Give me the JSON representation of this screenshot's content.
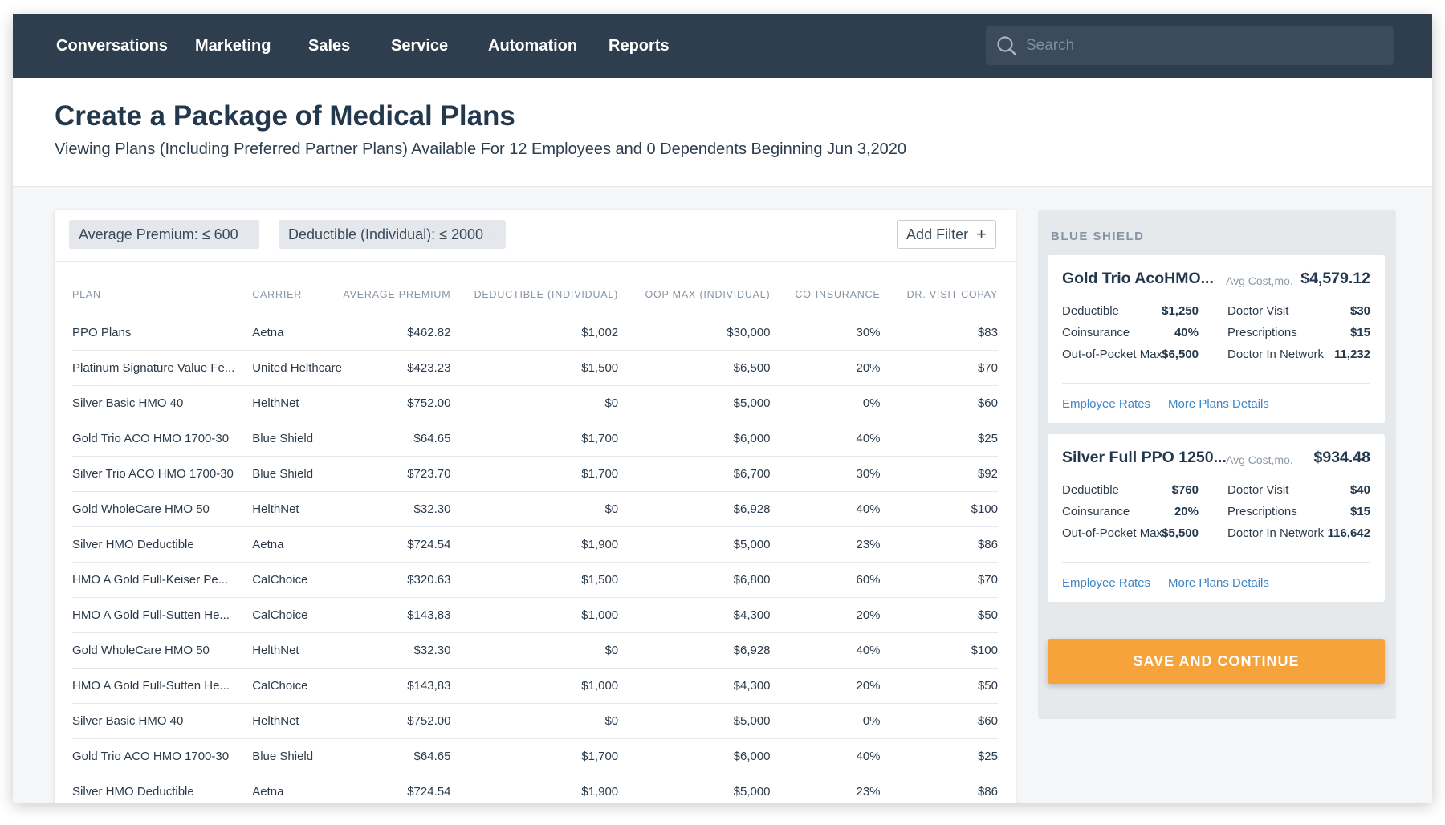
{
  "nav": {
    "items": [
      {
        "label": "Conversations"
      },
      {
        "label": "Marketing"
      },
      {
        "label": "Sales"
      },
      {
        "label": "Service"
      },
      {
        "label": "Automation"
      },
      {
        "label": "Reports"
      }
    ],
    "search": {
      "placeholder": "Search",
      "value": ""
    }
  },
  "header": {
    "title": "Create a Package of Medical Plans",
    "subtitle": "Viewing Plans (Including Preferred Partner Plans) Available For 12 Employees and 0 Dependents Beginning Jun 3,2020"
  },
  "filters": {
    "chips": [
      {
        "label": "Average Premium: ≤ 600"
      },
      {
        "label": "Deductible (Individual): ≤ 2000"
      }
    ],
    "add_label": "Add Filter"
  },
  "table": {
    "columns": [
      "PLAN",
      "CARRIER",
      "AVERAGE PREMIUM",
      "DEDUCTIBLE (INDIVIDUAL)",
      "OOP MAX (INDIVIDUAL)",
      "CO-INSURANCE",
      "DR. VISIT COPAY"
    ],
    "rows": [
      [
        "PPO Plans",
        "Aetna",
        "$462.82",
        "$1,002",
        "$30,000",
        "30%",
        "$83"
      ],
      [
        "Platinum Signature Value Fe...",
        "United Helthcare",
        "$423.23",
        "$1,500",
        "$6,500",
        "20%",
        "$70"
      ],
      [
        "Silver Basic HMO 40",
        "HelthNet",
        "$752.00",
        "$0",
        "$5,000",
        "0%",
        "$60"
      ],
      [
        "Gold Trio ACO HMO 1700-30",
        "Blue Shield",
        "$64.65",
        "$1,700",
        "$6,000",
        "40%",
        "$25"
      ],
      [
        "Silver Trio ACO HMO 1700-30",
        "Blue Shield",
        "$723.70",
        "$1,700",
        "$6,700",
        "30%",
        "$92"
      ],
      [
        "Gold WholeCare HMO 50",
        "HelthNet",
        "$32.30",
        "$0",
        "$6,928",
        "40%",
        "$100"
      ],
      [
        "Silver HMO Deductible",
        "Aetna",
        "$724.54",
        "$1,900",
        "$5,000",
        "23%",
        "$86"
      ],
      [
        "HMO A Gold Full-Keiser Pe...",
        "CalChoice",
        "$320.63",
        "$1,500",
        "$6,800",
        "60%",
        "$70"
      ],
      [
        "HMO A Gold Full-Sutten He...",
        "CalChoice",
        "$143,83",
        "$1,000",
        "$4,300",
        "20%",
        "$50"
      ],
      [
        "Gold WholeCare HMO 50",
        "HelthNet",
        "$32.30",
        "$0",
        "$6,928",
        "40%",
        "$100"
      ],
      [
        "HMO A Gold Full-Sutten He...",
        "CalChoice",
        "$143,83",
        "$1,000",
        "$4,300",
        "20%",
        "$50"
      ],
      [
        "Silver Basic HMO 40",
        "HelthNet",
        "$752.00",
        "$0",
        "$5,000",
        "0%",
        "$60"
      ],
      [
        "Gold Trio ACO HMO 1700-30",
        "Blue Shield",
        "$64.65",
        "$1,700",
        "$6,000",
        "40%",
        "$25"
      ],
      [
        "Silver HMO Deductible",
        "Aetna",
        "$724.54",
        "$1,900",
        "$5,000",
        "23%",
        "$86"
      ]
    ]
  },
  "side": {
    "carrier": "BLUE SHIELD",
    "cards": [
      {
        "name": "Gold Trio AcoHMO...",
        "cost_label": "Avg Cost,mo.",
        "cost": "$4,579.12",
        "deductible_label": "Deductible",
        "deductible": "$1,250",
        "coinsurance_label": "Coinsurance",
        "coinsurance": "40%",
        "oop_label": "Out-of-Pocket Max",
        "oop": "$6,500",
        "visit_label": "Doctor Visit",
        "visit": "$30",
        "rx_label": "Prescriptions",
        "rx": "$15",
        "network_label": "Doctor In Network",
        "network": "11,232",
        "link_rates": "Employee Rates",
        "link_details": "More Plans Details"
      },
      {
        "name": "Silver Full PPO 1250...",
        "cost_label": "Avg Cost,mo.",
        "cost": "$934.48",
        "deductible_label": "Deductible",
        "deductible": "$760",
        "coinsurance_label": "Coinsurance",
        "coinsurance": "20%",
        "oop_label": "Out-of-Pocket Max",
        "oop": "$5,500",
        "visit_label": "Doctor Visit",
        "visit": "$40",
        "rx_label": "Prescriptions",
        "rx": "$15",
        "network_label": "Doctor In Network",
        "network": "116,642",
        "link_rates": "Employee Rates",
        "link_details": "More Plans Details"
      }
    ],
    "save_label": "SAVE AND CONTINUE"
  },
  "colors": {
    "nav_bg": "#2e3e4e",
    "accent_orange": "#f7a33b",
    "link_blue": "#3f86c4",
    "title_navy": "#23384d"
  },
  "icons": [
    "search-icon",
    "close-icon",
    "plus-icon"
  ]
}
